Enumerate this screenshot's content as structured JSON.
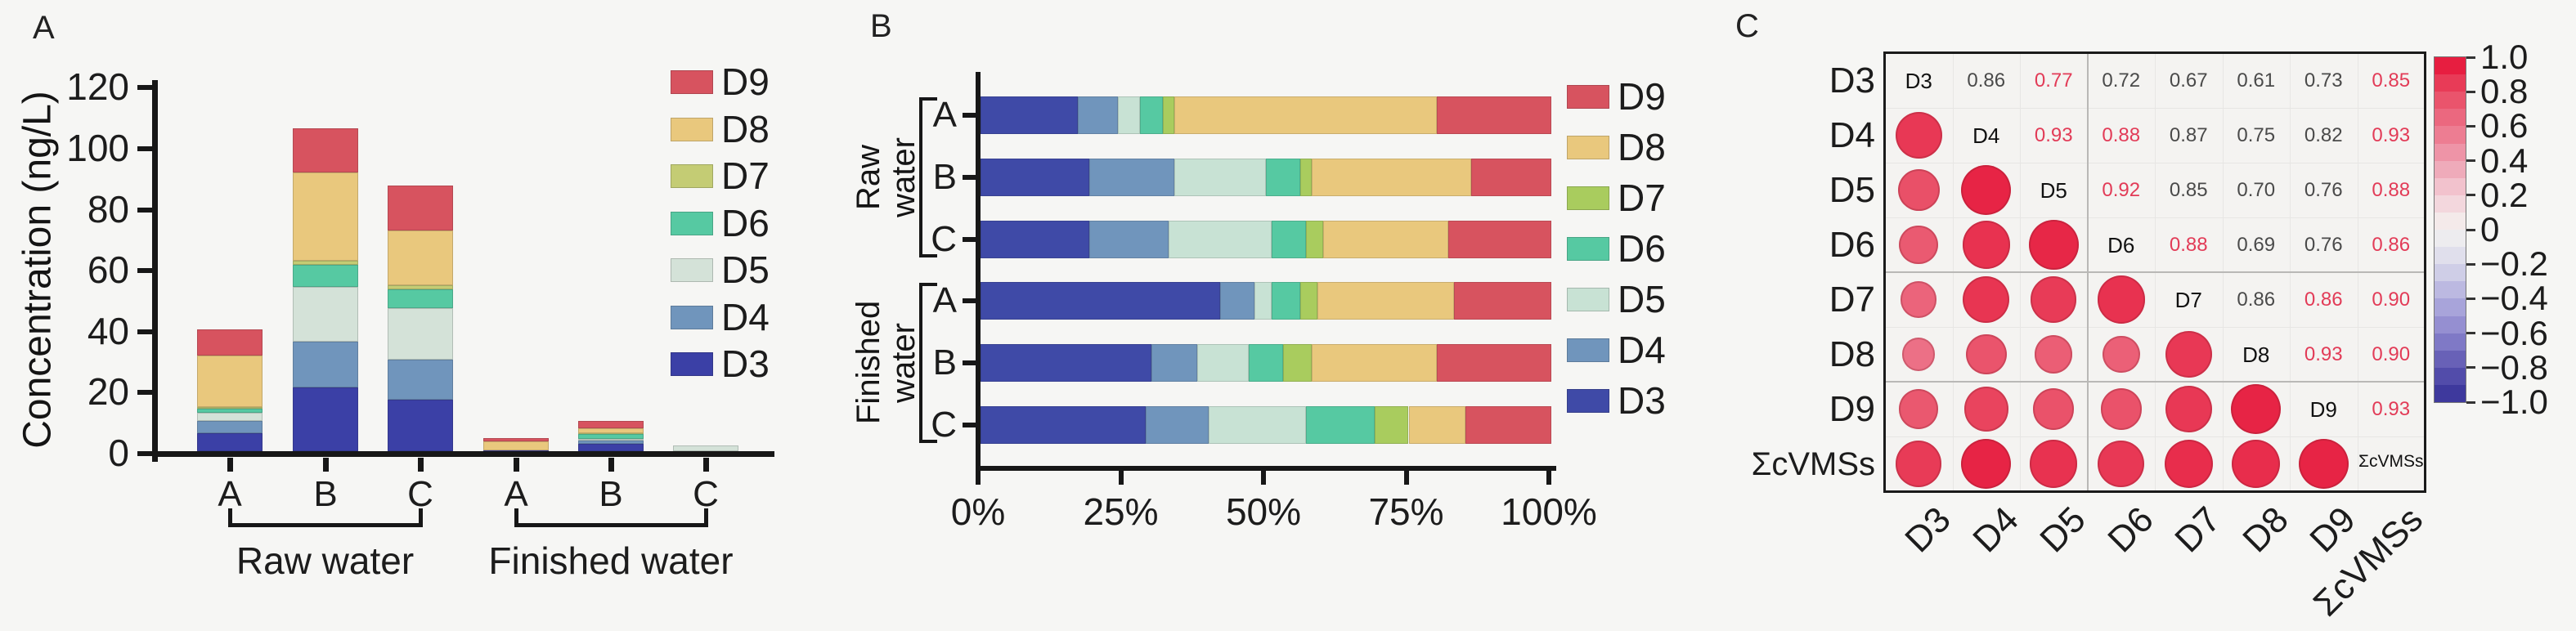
{
  "figure": {
    "background": "#f6f6f4",
    "panels": [
      {
        "label": "A"
      },
      {
        "label": "B"
      },
      {
        "label": "C"
      }
    ]
  },
  "chart_data": [
    {
      "id": "A",
      "type": "bar",
      "stacked": true,
      "title": "",
      "xlabel": "",
      "ylabel": "Concentration (ng/L)",
      "ylim": [
        0,
        120
      ],
      "yticks": [
        0,
        20,
        40,
        60,
        80,
        100,
        120
      ],
      "categories": [
        "A",
        "B",
        "C",
        "A",
        "B",
        "C"
      ],
      "groups": [
        {
          "label": "Raw water",
          "span": [
            0,
            2
          ]
        },
        {
          "label": "Finished water",
          "span": [
            3,
            5
          ]
        }
      ],
      "series": [
        {
          "name": "D3",
          "color": "#3b40a6",
          "values": [
            6,
            21,
            17,
            0.3,
            2.5,
            0
          ]
        },
        {
          "name": "D4",
          "color": "#7095bc",
          "values": [
            4,
            15,
            13,
            0.2,
            1,
            0
          ]
        },
        {
          "name": "D5",
          "color": "#d4e2d8",
          "values": [
            2.5,
            18,
            17,
            0.2,
            0.5,
            2
          ]
        },
        {
          "name": "D6",
          "color": "#56c9a2",
          "values": [
            1.5,
            7,
            6,
            0.2,
            1.5,
            0
          ]
        },
        {
          "name": "D7",
          "color": "#c4cc74",
          "values": [
            0.5,
            1.5,
            1.5,
            0.1,
            0.5,
            0
          ]
        },
        {
          "name": "D8",
          "color": "#e9c87d",
          "values": [
            17,
            29,
            18,
            3,
            1.5,
            0
          ]
        },
        {
          "name": "D9",
          "color": "#d7535f",
          "values": [
            8.5,
            14.5,
            14.5,
            1,
            2.5,
            0
          ]
        }
      ],
      "legend": [
        "D9",
        "D8",
        "D7",
        "D6",
        "D5",
        "D4",
        "D3"
      ],
      "legend_position": "upper right"
    },
    {
      "id": "B",
      "type": "bar",
      "subtype": "horizontal-100-percent-stacked",
      "xticks": [
        "0%",
        "25%",
        "50%",
        "75%",
        "100%"
      ],
      "categories": [
        "A",
        "B",
        "C",
        "A",
        "B",
        "C"
      ],
      "groups": [
        {
          "label": "Raw water",
          "span": [
            0,
            2
          ]
        },
        {
          "label": "Finished water",
          "span": [
            3,
            5
          ]
        }
      ],
      "series": [
        {
          "name": "D3",
          "color": "#3f4aa7",
          "values": [
            17,
            19,
            19,
            42,
            30,
            29
          ]
        },
        {
          "name": "D4",
          "color": "#7095bc",
          "values": [
            7,
            15,
            14,
            6,
            8,
            11
          ]
        },
        {
          "name": "D5",
          "color": "#c8e2d4",
          "values": [
            4,
            16,
            18,
            3,
            9,
            17
          ]
        },
        {
          "name": "D6",
          "color": "#56c9a2",
          "values": [
            4,
            6,
            6,
            5,
            6,
            12
          ]
        },
        {
          "name": "D7",
          "color": "#a9cc5e",
          "values": [
            2,
            2,
            3,
            3,
            5,
            6
          ]
        },
        {
          "name": "D8",
          "color": "#e9c87d",
          "values": [
            46,
            28,
            22,
            24,
            22,
            10
          ]
        },
        {
          "name": "D9",
          "color": "#d7535f",
          "values": [
            20,
            14,
            18,
            17,
            20,
            15
          ]
        }
      ],
      "legend": [
        "D9",
        "D8",
        "D7",
        "D6",
        "D5",
        "D4",
        "D3"
      ],
      "legend_position": "right"
    },
    {
      "id": "C",
      "type": "heatmap",
      "subtype": "correlation-matrix",
      "labels": [
        "D3",
        "D4",
        "D5",
        "D6",
        "D7",
        "D8",
        "D9",
        "ΣcVMSs"
      ],
      "value_color_normal": "#4a4a4a",
      "value_color_highlight": "#e23b57",
      "cells": [
        {
          "row": "D3",
          "col": "D4",
          "value": "0.86",
          "red": false
        },
        {
          "row": "D3",
          "col": "D5",
          "value": "0.77",
          "red": true
        },
        {
          "row": "D3",
          "col": "D6",
          "value": "0.72",
          "red": false
        },
        {
          "row": "D3",
          "col": "D7",
          "value": "0.67",
          "red": false
        },
        {
          "row": "D3",
          "col": "D8",
          "value": "0.61",
          "red": false
        },
        {
          "row": "D3",
          "col": "D9",
          "value": "0.73",
          "red": false
        },
        {
          "row": "D3",
          "col": "ΣcVMSs",
          "value": "0.85",
          "red": true
        },
        {
          "row": "D4",
          "col": "D5",
          "value": "0.93",
          "red": true
        },
        {
          "row": "D4",
          "col": "D6",
          "value": "0.88",
          "red": true
        },
        {
          "row": "D4",
          "col": "D7",
          "value": "0.87",
          "red": false
        },
        {
          "row": "D4",
          "col": "D8",
          "value": "0.75",
          "red": false
        },
        {
          "row": "D4",
          "col": "D9",
          "value": "0.82",
          "red": false
        },
        {
          "row": "D4",
          "col": "ΣcVMSs",
          "value": "0.93",
          "red": true
        },
        {
          "row": "D5",
          "col": "D6",
          "value": "0.92",
          "red": true
        },
        {
          "row": "D5",
          "col": "D7",
          "value": "0.85",
          "red": false
        },
        {
          "row": "D5",
          "col": "D8",
          "value": "0.70",
          "red": false
        },
        {
          "row": "D5",
          "col": "D9",
          "value": "0.76",
          "red": false
        },
        {
          "row": "D5",
          "col": "ΣcVMSs",
          "value": "0.88",
          "red": true
        },
        {
          "row": "D6",
          "col": "D7",
          "value": "0.88",
          "red": true
        },
        {
          "row": "D6",
          "col": "D8",
          "value": "0.69",
          "red": false
        },
        {
          "row": "D6",
          "col": "D9",
          "value": "0.76",
          "red": false
        },
        {
          "row": "D6",
          "col": "ΣcVMSs",
          "value": "0.86",
          "red": true
        },
        {
          "row": "D7",
          "col": "D8",
          "value": "0.86",
          "red": false
        },
        {
          "row": "D7",
          "col": "D9",
          "value": "0.86",
          "red": true
        },
        {
          "row": "D7",
          "col": "ΣcVMSs",
          "value": "0.90",
          "red": true
        },
        {
          "row": "D8",
          "col": "D9",
          "value": "0.93",
          "red": true
        },
        {
          "row": "D8",
          "col": "ΣcVMSs",
          "value": "0.90",
          "red": true
        },
        {
          "row": "D9",
          "col": "ΣcVMSs",
          "value": "0.93",
          "red": true
        }
      ],
      "colorbar": {
        "ticks": [
          "1.0",
          "0.8",
          "0.6",
          "0.4",
          "0.2",
          "0",
          "−0.2",
          "−0.4",
          "−0.6",
          "−0.8",
          "−1.0"
        ],
        "range": [
          1.0,
          -1.0
        ],
        "stops": [
          {
            "v": 1.0,
            "c": "#e60f35"
          },
          {
            "v": 0.8,
            "c": "#e94a62"
          },
          {
            "v": 0.6,
            "c": "#ec7288"
          },
          {
            "v": 0.4,
            "c": "#ee9fb1"
          },
          {
            "v": 0.2,
            "c": "#f3cdd6"
          },
          {
            "v": 0.0,
            "c": "#f4f3f1"
          },
          {
            "v": -0.2,
            "c": "#d9d8ea"
          },
          {
            "v": -0.4,
            "c": "#b2aede"
          },
          {
            "v": -0.6,
            "c": "#8b85cd"
          },
          {
            "v": -0.8,
            "c": "#5c55b0"
          },
          {
            "v": -1.0,
            "c": "#343097"
          }
        ]
      }
    }
  ]
}
